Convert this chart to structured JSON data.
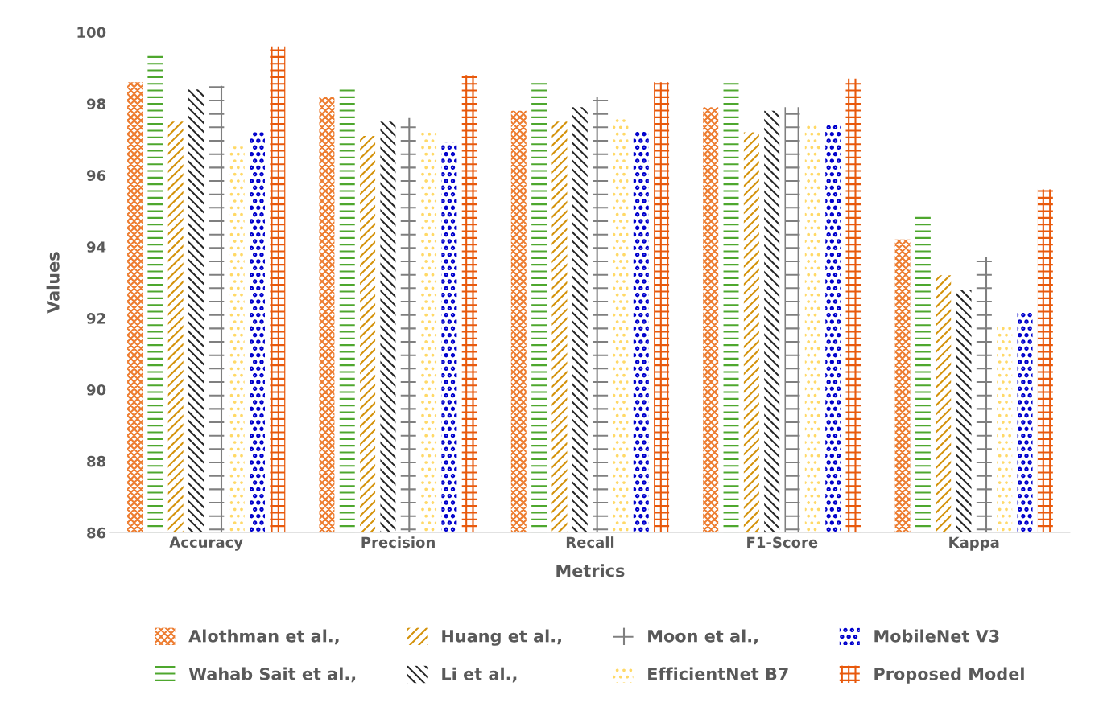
{
  "chart_data": {
    "type": "bar",
    "xlabel": "Metrics",
    "ylabel": "Values",
    "categories": [
      "Accuracy",
      "Precision",
      "Recall",
      "F1-Score",
      "Kappa"
    ],
    "series": [
      {
        "name": "Alothman et al.,",
        "color": "#ed7d31",
        "values": [
          98.6,
          98.2,
          97.8,
          97.9,
          94.2
        ]
      },
      {
        "name": "Wahab Sait et al.,",
        "color": "#4ea72e",
        "values": [
          99.4,
          98.5,
          98.6,
          98.7,
          94.9
        ]
      },
      {
        "name": "Huang et al.,",
        "color": "#d4920a",
        "values": [
          97.5,
          97.1,
          97.5,
          97.2,
          93.2
        ]
      },
      {
        "name": "Li et al.,",
        "color": "#262626",
        "values": [
          98.4,
          97.5,
          97.9,
          97.8,
          92.8
        ]
      },
      {
        "name": "Moon et al.,",
        "color": "#7f7f7f",
        "values": [
          98.5,
          97.6,
          98.2,
          97.9,
          93.7
        ]
      },
      {
        "name": "EfficientNet B7",
        "color": "#ffd966",
        "values": [
          96.8,
          97.2,
          97.6,
          97.4,
          91.8
        ]
      },
      {
        "name": "MobileNet V3",
        "color": "#0000cc",
        "values": [
          97.2,
          96.9,
          97.3,
          97.4,
          92.2
        ]
      },
      {
        "name": "Proposed Model",
        "color": "#e8590c",
        "values": [
          99.6,
          98.8,
          98.6,
          98.7,
          95.6
        ]
      }
    ],
    "ylim": [
      86,
      100
    ],
    "yticks": [
      86,
      88,
      90,
      92,
      94,
      96,
      98,
      100
    ],
    "grid": false,
    "legend": "bottom"
  }
}
